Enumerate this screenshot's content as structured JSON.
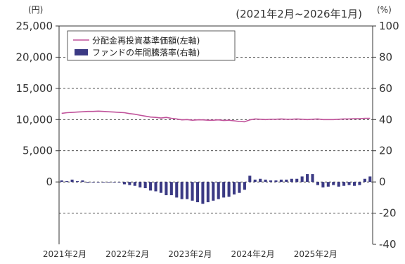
{
  "chart_data": {
    "type": "bar+line",
    "period_label": "(2021年2月~2026年1月)",
    "y_left": {
      "unit": "(円)",
      "ticks": [
        "25,000",
        "20,000",
        "15,000",
        "10,000",
        "5,000",
        "0"
      ],
      "tick_values": [
        25000,
        20000,
        15000,
        10000,
        5000,
        0
      ],
      "range": [
        -10000,
        25000
      ]
    },
    "y_right": {
      "unit": "(%)",
      "ticks": [
        "100",
        "80",
        "60",
        "40",
        "20",
        "0",
        "-20",
        "-40"
      ],
      "tick_values": [
        100,
        80,
        60,
        40,
        20,
        0,
        -20,
        -40
      ],
      "range": [
        -40,
        100
      ]
    },
    "x_ticks": [
      "2021年2月",
      "2022年2月",
      "2023年2月",
      "2024年2月",
      "2025年2月"
    ],
    "x_tick_index": [
      0,
      12,
      24,
      36,
      48
    ],
    "n_months": 60,
    "legend_position": "top-left",
    "series": [
      {
        "name": "分配金再投資基準価額(左軸)",
        "type": "line",
        "axis": "left",
        "color": "#c0529a",
        "values": [
          11000,
          11100,
          11150,
          11200,
          11250,
          11300,
          11300,
          11350,
          11300,
          11250,
          11200,
          11150,
          11100,
          10950,
          10850,
          10700,
          10550,
          10400,
          10350,
          10250,
          10350,
          10200,
          10100,
          9950,
          10000,
          9900,
          9950,
          9950,
          9900,
          9900,
          9950,
          9850,
          9900,
          9800,
          9700,
          9650,
          9950,
          10100,
          10050,
          10000,
          10050,
          10050,
          10100,
          10050,
          10050,
          10100,
          10050,
          10000,
          10050,
          10100,
          10000,
          10000,
          10000,
          10050,
          10100,
          10100,
          10150,
          10150,
          10200,
          10200
        ]
      },
      {
        "name": "ファンドの年間騰落率(右軸)",
        "type": "bar",
        "axis": "right",
        "color": "#3b3a84",
        "values": [
          1,
          0.5,
          1.5,
          0.5,
          1,
          -0.5,
          0,
          0,
          0,
          0,
          0,
          0,
          -1.5,
          -2,
          -2.5,
          -3.5,
          -4,
          -5.5,
          -6,
          -7,
          -8.5,
          -8.5,
          -10,
          -11,
          -11,
          -12,
          -13,
          -14,
          -13,
          -12,
          -11,
          -10,
          -9.5,
          -8,
          -7,
          -5,
          4,
          1.5,
          2,
          1.5,
          1,
          1,
          1.5,
          1.5,
          2,
          2,
          3.5,
          5,
          5,
          -2,
          -3.5,
          -3,
          -2,
          -3,
          -2.5,
          -2,
          -2.5,
          -2,
          2,
          3.5
        ]
      }
    ]
  }
}
